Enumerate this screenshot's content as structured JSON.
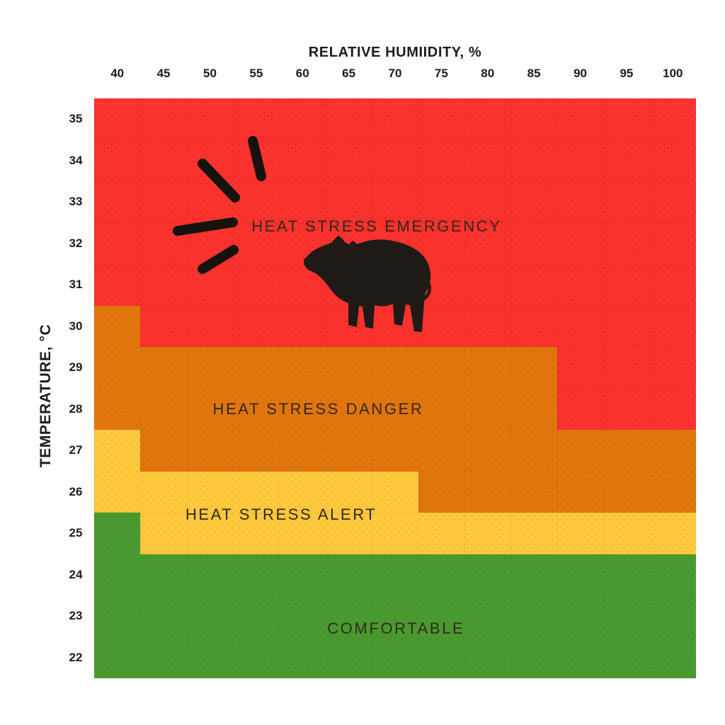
{
  "chart_data": {
    "type": "heatmap",
    "title": "RELATIVE HUMIIDITY, %",
    "x_axis": {
      "label": "RELATIVE HUMIIDITY, %",
      "position": "top",
      "ticks": [
        40,
        45,
        50,
        55,
        60,
        65,
        70,
        75,
        80,
        85,
        90,
        95,
        100
      ],
      "range": [
        37.5,
        102.5
      ]
    },
    "y_axis": {
      "label": "TEMPERATURE, °C",
      "position": "left",
      "direction": "descending",
      "ticks": [
        35,
        34,
        33,
        32,
        31,
        30,
        29,
        28,
        27,
        26,
        25,
        24,
        23,
        22
      ],
      "range": [
        21.5,
        35.5
      ]
    },
    "grid": "faint",
    "zones": [
      {
        "id": "emergency",
        "label": "HEAT STRESS EMERGENCY",
        "color": "#fb322e",
        "rects": [
          {
            "x": [
              37.5,
              102.5
            ],
            "t": [
              21.5,
              35.5
            ]
          }
        ],
        "label_at": {
          "x": 68.0,
          "t": 32.4
        }
      },
      {
        "id": "danger",
        "label": "HEAT STRESS DANGER",
        "color": "#e1760d",
        "rects": [
          {
            "x": [
              37.5,
              42.5
            ],
            "t": [
              27.5,
              30.5
            ]
          },
          {
            "x": [
              42.5,
              72.5
            ],
            "t": [
              26.5,
              29.5
            ]
          },
          {
            "x": [
              72.5,
              87.5
            ],
            "t": [
              25.5,
              29.5
            ]
          },
          {
            "x": [
              87.5,
              102.5
            ],
            "t": [
              25.5,
              27.5
            ]
          }
        ],
        "label_at": {
          "x": 61.7,
          "t": 28.0
        }
      },
      {
        "id": "alert",
        "label": "HEAT STRESS ALERT",
        "color": "#ffc93d",
        "rects": [
          {
            "x": [
              37.5,
              42.5
            ],
            "t": [
              25.5,
              27.5
            ]
          },
          {
            "x": [
              42.5,
              72.5
            ],
            "t": [
              24.5,
              26.5
            ]
          },
          {
            "x": [
              72.5,
              102.5
            ],
            "t": [
              24.5,
              25.5
            ]
          }
        ],
        "label_at": {
          "x": 57.7,
          "t": 25.45
        }
      },
      {
        "id": "comfortable",
        "label": "COMFORTABLE",
        "color": "#4a9b2f",
        "rects": [
          {
            "x": [
              37.5,
              42.5
            ],
            "t": [
              21.5,
              25.5
            ]
          },
          {
            "x": [
              42.5,
              102.5
            ],
            "t": [
              21.5,
              24.5
            ]
          }
        ],
        "label_at": {
          "x": 70.1,
          "t": 22.7
        }
      }
    ],
    "icons": {
      "pig": "pig-silhouette",
      "alarm": "alarm-strokes"
    },
    "text_color": "#33281c",
    "axis_text_color": "#1c1c1c"
  }
}
